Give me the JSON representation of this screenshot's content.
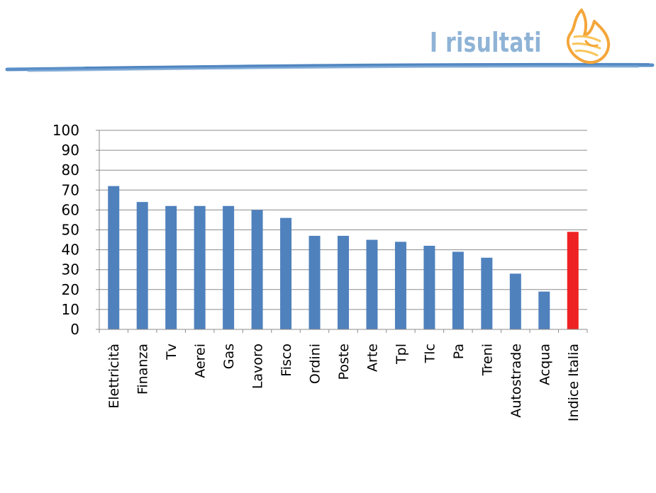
{
  "header": {
    "title": "I risultati",
    "title_color": "#8fb3d6",
    "rule_color": "#5a8fc7",
    "logo_icon": "flame-hand-logo-icon",
    "logo_colors": [
      "#f4a63a",
      "#f9d36b"
    ]
  },
  "chart_data": {
    "type": "bar",
    "categories": [
      "Elettricità",
      "Finanza",
      "Tv",
      "Aerei",
      "Gas",
      "Lavoro",
      "Fisco",
      "Ordini",
      "Poste",
      "Arte",
      "Tpl",
      "Tlc",
      "Pa",
      "Treni",
      "Autostrade",
      "Acqua",
      "Indice Italia"
    ],
    "values": [
      72,
      64,
      62,
      62,
      62,
      60,
      56,
      47,
      47,
      45,
      44,
      42,
      39,
      36,
      28,
      19,
      49
    ],
    "bar_colors": [
      "#4f81bd",
      "#4f81bd",
      "#4f81bd",
      "#4f81bd",
      "#4f81bd",
      "#4f81bd",
      "#4f81bd",
      "#4f81bd",
      "#4f81bd",
      "#4f81bd",
      "#4f81bd",
      "#4f81bd",
      "#4f81bd",
      "#4f81bd",
      "#4f81bd",
      "#4f81bd",
      "#ee2222"
    ],
    "title": "",
    "xlabel": "",
    "ylabel": "",
    "ylim": [
      0,
      100
    ],
    "yticks": [
      0,
      10,
      20,
      30,
      40,
      50,
      60,
      70,
      80,
      90,
      100
    ],
    "grid": true,
    "legend": false
  }
}
